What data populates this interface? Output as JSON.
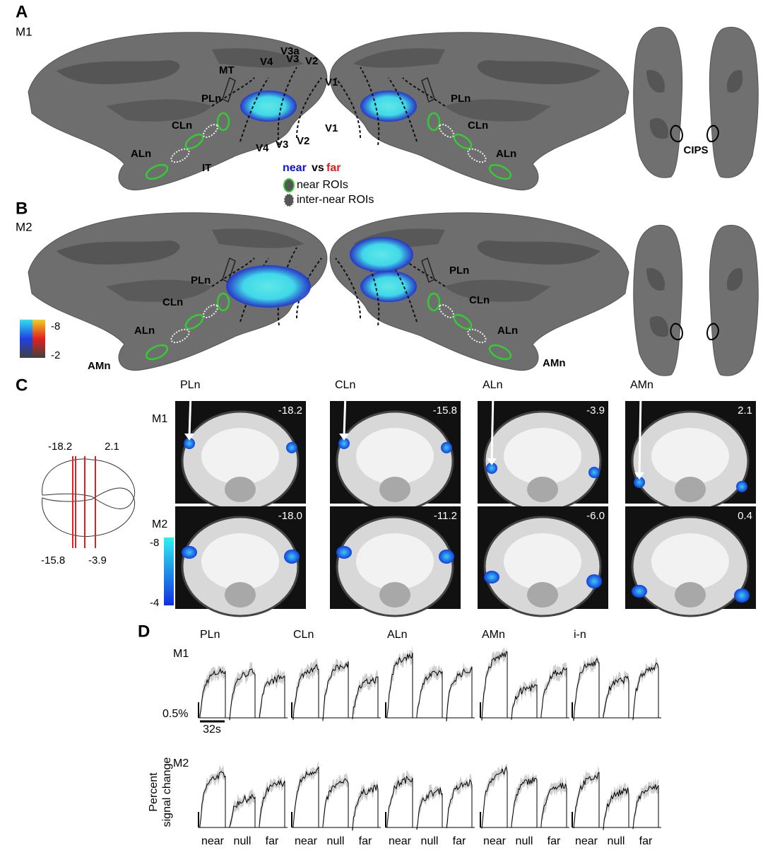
{
  "panel_a": {
    "letter": "A",
    "subject": "M1",
    "left_labels": [
      "MT",
      "V4",
      "V3a",
      "V3",
      "V2",
      "V1",
      "V1",
      "V4",
      "V3",
      "V2",
      "PLn",
      "CLn",
      "ALn",
      "IT"
    ],
    "right_labels": [
      "PLn",
      "CLn",
      "ALn"
    ],
    "dorsal_label": "CIPS",
    "legend": {
      "near": "near",
      "vs": "vs",
      "far": "far",
      "near_rois": "near ROIs",
      "inter_near_rois": "inter-near ROIs"
    }
  },
  "panel_b": {
    "letter": "B",
    "subject": "M2",
    "left_labels": [
      "PLn",
      "CLn",
      "ALn",
      "AMn"
    ],
    "right_labels": [
      "PLn",
      "CLn",
      "ALn",
      "AMn"
    ],
    "colorbar": [
      "-8",
      "-2"
    ]
  },
  "panel_c": {
    "letter": "C",
    "schematic": [
      "-18.2",
      "2.1",
      "-15.8",
      "-3.9"
    ],
    "rows": [
      {
        "subject": "M1",
        "rois": [
          "PLn",
          "CLn",
          "ALn",
          "AMn"
        ],
        "coords": [
          "-18.2",
          "-15.8",
          "-3.9",
          "2.1"
        ]
      },
      {
        "subject": "M2",
        "coords": [
          "-18.0",
          "-11.2",
          "-6.0",
          "0.4"
        ]
      }
    ],
    "colorbar": [
      "-8",
      "-4"
    ]
  },
  "panel_d": {
    "letter": "D",
    "columns": [
      "PLn",
      "CLn",
      "ALn",
      "AMn",
      "i-n"
    ],
    "rows": [
      "M1",
      "M2"
    ],
    "scale_y": "0.5%",
    "scale_x": "32s",
    "y_label": [
      "Percent",
      "signal change"
    ],
    "conditions": [
      "near",
      "null",
      "far"
    ]
  }
}
